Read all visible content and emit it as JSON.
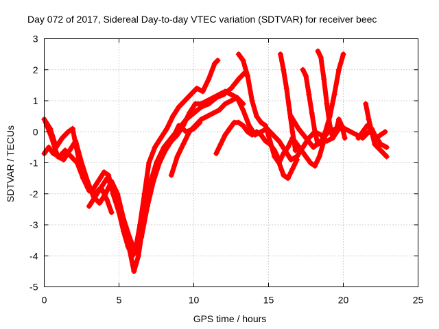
{
  "chart_data": {
    "type": "scatter",
    "title": "Day 072 of 2017, Sidereal Day-to-day VTEC variation (SDTVAR) for receiver beec",
    "xlabel": "GPS time / hours",
    "ylabel": "SDTVAR / TECUs",
    "xlim": [
      0,
      25
    ],
    "ylim": [
      -5,
      3
    ],
    "x_ticks": [
      0,
      5,
      10,
      15,
      20,
      25
    ],
    "y_ticks": [
      -5,
      -4,
      -3,
      -2,
      -1,
      0,
      1,
      2,
      3
    ],
    "x_tick_labels": [
      "0",
      "5",
      "10",
      "15",
      "20",
      "25"
    ],
    "y_tick_labels": [
      "-5",
      "-4",
      "-3",
      "-2",
      "-1",
      "0",
      "1",
      "2",
      "3"
    ],
    "grid": true,
    "marker": "plus",
    "series": [
      {
        "color": "#ff0000",
        "x": [
          0.0,
          0.4,
          0.8,
          1.2,
          1.6,
          1.9,
          2.1,
          2.5,
          2.9,
          3.2,
          3.6,
          4.0,
          4.3,
          4.6,
          5.0,
          5.3,
          5.6,
          5.9,
          6.1,
          6.4,
          6.7,
          7.0,
          7.4,
          7.8,
          8.2,
          8.6,
          9.0,
          9.4,
          9.8,
          10.2,
          10.6,
          11.0,
          11.4,
          11.6
        ],
        "y": [
          0.4,
          0.1,
          -0.5,
          -0.2,
          0.0,
          0.1,
          -0.4,
          -1.3,
          -1.8,
          -1.9,
          -1.6,
          -1.3,
          -1.4,
          -2.0,
          -2.6,
          -3.2,
          -3.7,
          -4.0,
          -3.8,
          -3.0,
          -2.0,
          -1.0,
          -0.5,
          -0.2,
          0.1,
          0.5,
          0.8,
          1.0,
          1.2,
          1.4,
          1.3,
          1.7,
          2.2,
          2.3
        ]
      },
      {
        "color": "#ff0000",
        "x": [
          0.0,
          0.3,
          0.6,
          1.0,
          1.4,
          1.8,
          2.2,
          2.6,
          3.0,
          3.4,
          3.8,
          4.2,
          4.6,
          5.0,
          5.4,
          5.7,
          6.0,
          6.3,
          6.6,
          7.0,
          7.5,
          8.0,
          8.5,
          9.0,
          9.5,
          10.0,
          10.5,
          11.0,
          11.5,
          12.0,
          12.5,
          13.0,
          13.4,
          13.6
        ],
        "y": [
          -0.7,
          -0.5,
          -0.7,
          -0.8,
          -0.6,
          -0.8,
          -1.0,
          -1.5,
          -1.9,
          -2.0,
          -1.8,
          -1.5,
          -1.8,
          -2.5,
          -3.3,
          -3.8,
          -4.5,
          -4.0,
          -3.0,
          -1.8,
          -1.0,
          -0.5,
          -0.2,
          0.1,
          0.4,
          0.6,
          0.8,
          0.9,
          1.1,
          1.2,
          1.4,
          1.7,
          1.9,
          1.8
        ]
      },
      {
        "color": "#ff0000",
        "x": [
          0.1,
          0.5,
          0.9,
          1.3,
          1.7,
          2.1,
          2.5,
          2.9,
          3.3,
          3.7,
          4.1,
          4.5,
          4.9,
          5.3,
          5.7,
          6.1,
          6.5,
          6.9,
          7.3,
          7.7,
          8.1,
          8.5,
          8.9,
          9.3,
          9.7,
          10.1,
          10.5,
          10.9,
          11.3,
          11.7,
          12.1,
          12.5,
          12.9,
          13.3
        ],
        "y": [
          0.3,
          -0.2,
          -0.8,
          -0.9,
          -0.6,
          -0.3,
          -1.0,
          -1.6,
          -2.1,
          -2.3,
          -2.0,
          -1.6,
          -2.0,
          -2.8,
          -3.4,
          -3.9,
          -3.4,
          -2.4,
          -1.6,
          -1.0,
          -0.6,
          -0.3,
          -0.1,
          0.2,
          0.6,
          0.9,
          0.9,
          1.0,
          1.1,
          1.2,
          1.3,
          1.2,
          1.1,
          0.9
        ]
      },
      {
        "color": "#ff0000",
        "x": [
          3.0,
          3.4,
          3.8,
          4.2,
          4.5
        ],
        "y": [
          -2.4,
          -2.1,
          -1.8,
          -2.2,
          -2.6
        ]
      },
      {
        "color": "#ff0000",
        "x": [
          8.5,
          8.9,
          9.3,
          9.7,
          10.1,
          10.5,
          10.9,
          11.3,
          11.7,
          12.1,
          12.5,
          12.9,
          13.3,
          13.7,
          14.1,
          14.5,
          14.9,
          15.3,
          15.7,
          16.1,
          16.5,
          16.9,
          17.3,
          17.7,
          18.1,
          18.5,
          18.9,
          19.3,
          19.7,
          20.1,
          20.5,
          20.9,
          21.3,
          21.7,
          22.1,
          22.5,
          22.9
        ],
        "y": [
          -1.4,
          -0.8,
          -0.4,
          0.0,
          0.2,
          0.4,
          0.5,
          0.6,
          0.7,
          0.9,
          1.0,
          1.1,
          0.7,
          0.2,
          -0.1,
          0.0,
          0.1,
          -0.1,
          -0.3,
          -0.6,
          -0.9,
          -0.8,
          -0.5,
          -0.2,
          0.0,
          -0.1,
          -0.3,
          -0.2,
          0.1,
          0.1,
          0.0,
          -0.1,
          -0.2,
          0.0,
          -0.1,
          -0.4,
          -0.5
        ]
      },
      {
        "color": "#ff0000",
        "x": [
          8.0,
          8.5,
          9.0,
          9.5,
          10.0,
          10.4
        ],
        "y": [
          -0.6,
          -0.3,
          0.2,
          0.0,
          0.1,
          0.3
        ]
      },
      {
        "color": "#ff0000",
        "x": [
          11.5,
          11.8,
          12.1,
          12.4,
          12.7,
          13.0,
          13.3,
          13.6,
          13.9,
          14.2,
          14.5,
          14.8,
          15.1,
          15.4,
          15.7
        ],
        "y": [
          -0.7,
          -0.4,
          -0.1,
          0.1,
          0.3,
          0.3,
          0.2,
          0.0,
          -0.1,
          0.0,
          -0.1,
          -0.3,
          -0.4,
          -0.6,
          -0.9
        ]
      },
      {
        "color": "#ff0000",
        "x": [
          13.0,
          13.3,
          13.6,
          13.9,
          14.2,
          14.5,
          14.8,
          15.1,
          15.4,
          15.7,
          16.0,
          16.3,
          16.6,
          16.9,
          17.2,
          17.5,
          17.8,
          18.1,
          18.4,
          18.7
        ],
        "y": [
          2.5,
          2.3,
          1.8,
          1.0,
          0.5,
          0.3,
          0.2,
          -0.3,
          -0.8,
          -1.0,
          -0.7,
          -0.5,
          -0.2,
          -0.4,
          -0.6,
          -0.8,
          -1.0,
          -1.1,
          -0.8,
          -0.3
        ]
      },
      {
        "color": "#ff0000",
        "x": [
          15.7,
          16.0,
          16.3,
          16.6,
          16.9
        ],
        "y": [
          -1.0,
          -1.4,
          -1.5,
          -1.2,
          -0.9
        ]
      },
      {
        "color": "#ff0000",
        "x": [
          15.8,
          16.0,
          16.2,
          16.4,
          16.6,
          16.8
        ],
        "y": [
          2.5,
          2.0,
          1.4,
          0.7,
          0.0,
          -0.6
        ]
      },
      {
        "color": "#ff0000",
        "x": [
          17.3,
          17.5,
          17.7,
          17.9,
          18.1,
          18.3
        ],
        "y": [
          2.0,
          1.8,
          1.2,
          0.6,
          0.0,
          -0.4
        ]
      },
      {
        "color": "#ff0000",
        "x": [
          18.3,
          18.5,
          18.7,
          18.9,
          19.1,
          19.3,
          19.5,
          19.7,
          19.9,
          20.1
        ],
        "y": [
          2.6,
          2.4,
          1.7,
          0.9,
          0.2,
          -0.2,
          0.0,
          0.4,
          0.2,
          -0.2
        ]
      },
      {
        "color": "#ff0000",
        "x": [
          18.5,
          18.8,
          19.1,
          19.4,
          19.7,
          20.0
        ],
        "y": [
          -0.4,
          0.0,
          0.5,
          1.2,
          2.0,
          2.5
        ]
      },
      {
        "color": "#ff0000",
        "x": [
          16.5,
          17.0,
          17.5,
          18.0,
          18.5,
          19.0,
          19.5,
          20.0
        ],
        "y": [
          0.5,
          0.1,
          -0.2,
          -0.5,
          -0.3,
          0.0,
          0.1,
          0.1
        ]
      },
      {
        "color": "#ff0000",
        "x": [
          21.5,
          21.7,
          21.9,
          22.1,
          22.3,
          22.5,
          22.7,
          22.9
        ],
        "y": [
          0.9,
          0.4,
          0.0,
          -0.4,
          -0.5,
          -0.6,
          -0.7,
          -0.8
        ]
      },
      {
        "color": "#ff0000",
        "x": [
          21.0,
          21.3,
          21.6,
          21.9,
          22.2,
          22.5,
          22.8
        ],
        "y": [
          -0.2,
          0.0,
          0.2,
          0.1,
          -0.2,
          -0.1,
          0.0
        ]
      }
    ]
  }
}
